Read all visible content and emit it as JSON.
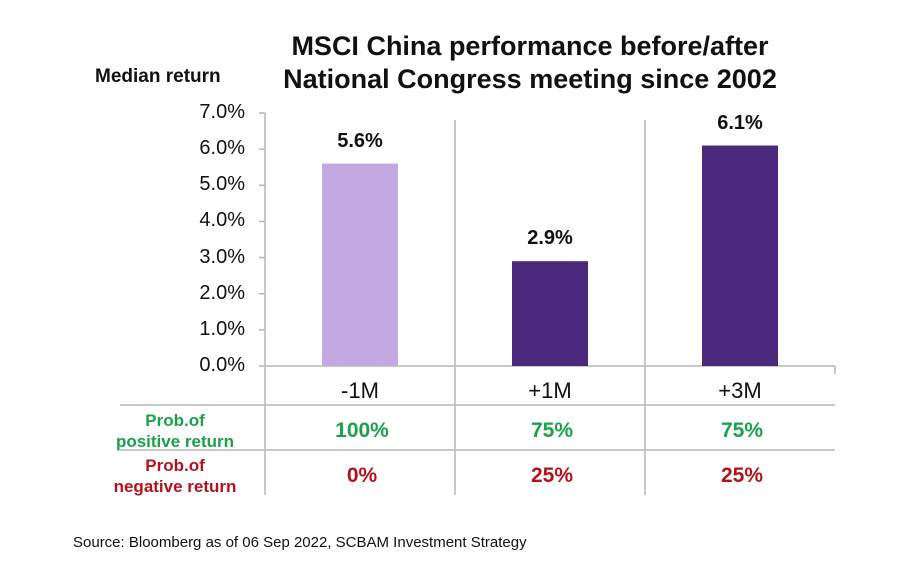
{
  "chart_data": {
    "type": "bar",
    "title": "MSCI China performance before/after National Congress meeting since 2002",
    "ylabel": "Median return",
    "categories": [
      "-1M",
      "+1M",
      "+3M"
    ],
    "values": [
      5.6,
      2.9,
      6.1
    ],
    "value_labels": [
      "5.6%",
      "2.9%",
      "6.1%"
    ],
    "bar_colors": [
      "#c3a8e2",
      "#4b2a7d",
      "#4b2a7d"
    ],
    "ylim": [
      0,
      7
    ],
    "yticks": [
      0,
      1,
      2,
      3,
      4,
      5,
      6,
      7
    ],
    "ytick_labels": [
      "0.0%",
      "1.0%",
      "2.0%",
      "3.0%",
      "4.0%",
      "5.0%",
      "6.0%",
      "7.0%"
    ],
    "grid": false,
    "legend": "none"
  },
  "table": {
    "positive_label_line1": "Prob.of",
    "positive_label_line2": "positive return",
    "negative_label_line1": "Prob.of",
    "negative_label_line2": "negative return",
    "positive_values": [
      "100%",
      "75%",
      "75%"
    ],
    "negative_values": [
      "0%",
      "25%",
      "25%"
    ],
    "positive_color": "#1aa14a",
    "negative_color": "#b3121c"
  },
  "source": "Source: Bloomberg as of 06 Sep 2022, SCBAM Investment Strategy"
}
